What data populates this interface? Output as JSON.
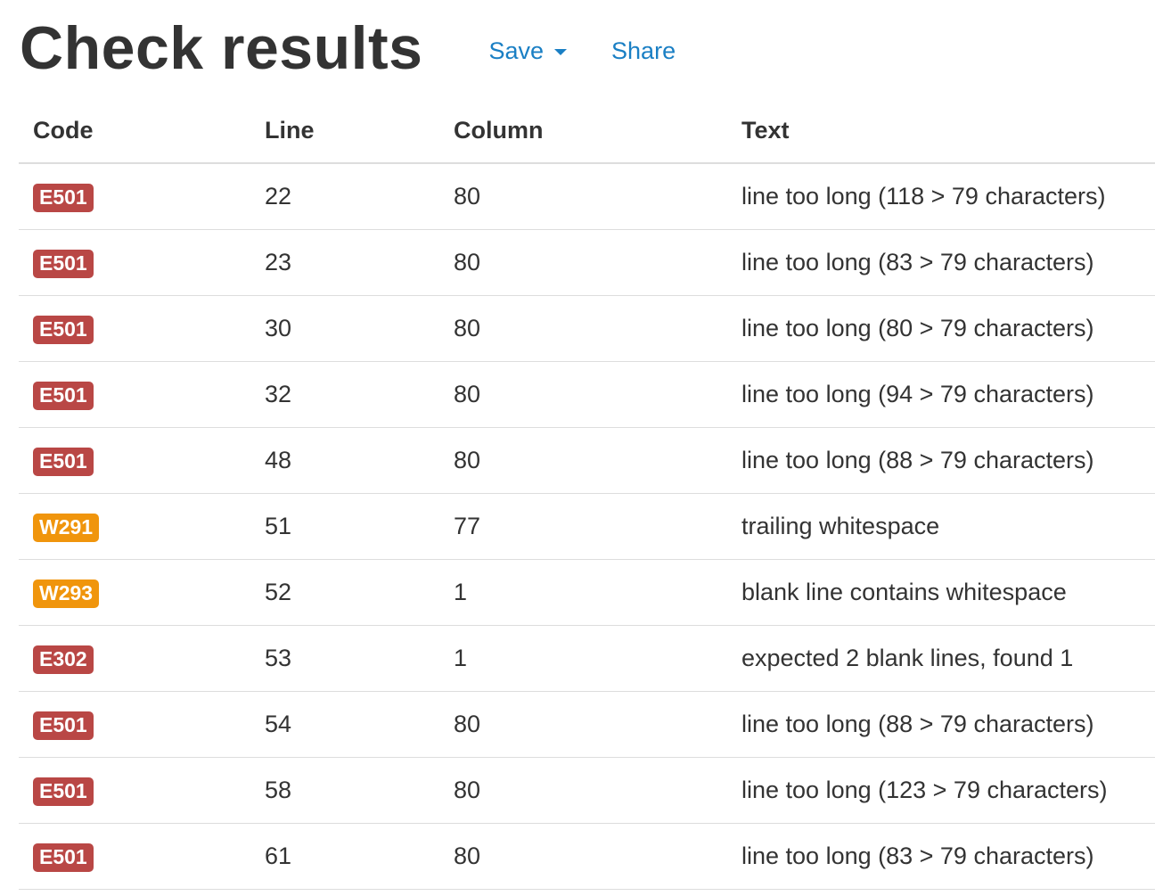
{
  "header": {
    "title": "Check results",
    "save_label": "Save",
    "share_label": "Share"
  },
  "colors": {
    "link": "#1a7fc4",
    "error_badge": "#b94745",
    "warning_badge": "#f0950c",
    "text": "#333333",
    "border": "#dddddd"
  },
  "table": {
    "headers": {
      "code": "Code",
      "line": "Line",
      "column": "Column",
      "text": "Text"
    },
    "rows": [
      {
        "code": "E501",
        "severity": "error",
        "line": "22",
        "column": "80",
        "text": "line too long (118 > 79 characters)"
      },
      {
        "code": "E501",
        "severity": "error",
        "line": "23",
        "column": "80",
        "text": "line too long (83 > 79 characters)"
      },
      {
        "code": "E501",
        "severity": "error",
        "line": "30",
        "column": "80",
        "text": "line too long (80 > 79 characters)"
      },
      {
        "code": "E501",
        "severity": "error",
        "line": "32",
        "column": "80",
        "text": "line too long (94 > 79 characters)"
      },
      {
        "code": "E501",
        "severity": "error",
        "line": "48",
        "column": "80",
        "text": "line too long (88 > 79 characters)"
      },
      {
        "code": "W291",
        "severity": "warning",
        "line": "51",
        "column": "77",
        "text": "trailing whitespace"
      },
      {
        "code": "W293",
        "severity": "warning",
        "line": "52",
        "column": "1",
        "text": "blank line contains whitespace"
      },
      {
        "code": "E302",
        "severity": "error",
        "line": "53",
        "column": "1",
        "text": "expected 2 blank lines, found 1"
      },
      {
        "code": "E501",
        "severity": "error",
        "line": "54",
        "column": "80",
        "text": "line too long (88 > 79 characters)"
      },
      {
        "code": "E501",
        "severity": "error",
        "line": "58",
        "column": "80",
        "text": "line too long (123 > 79 characters)"
      },
      {
        "code": "E501",
        "severity": "error",
        "line": "61",
        "column": "80",
        "text": "line too long (83 > 79 characters)"
      }
    ]
  }
}
